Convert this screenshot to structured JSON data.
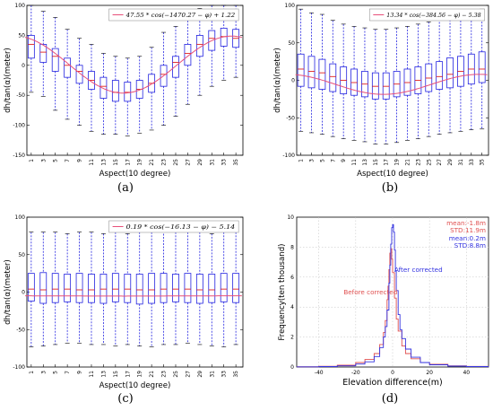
{
  "colors": {
    "box": "#2323e0",
    "median": "#e02020",
    "fit": "#e8507a",
    "before": "#e05050",
    "after": "#3232e0",
    "grid": "#bfbfbf"
  },
  "chart_data": [
    {
      "id": "a",
      "type": "box",
      "panel_label": "(a)",
      "xlabel": "Aspect(10 degree)",
      "ylabel": "dh/tan(α)(meter)",
      "ylim": [
        -150,
        100
      ],
      "yticks": [
        -150,
        -100,
        -50,
        0,
        50,
        100
      ],
      "xticks": [
        1,
        3,
        5,
        7,
        9,
        11,
        13,
        15,
        17,
        19,
        21,
        23,
        25,
        27,
        29,
        31,
        33,
        35
      ],
      "legend": "47.55 * cos(−1470.27 − φ) + 1.22",
      "fit": {
        "amplitude": 47.55,
        "phase_center": 16.3,
        "offset": 1.22
      },
      "boxes": [
        {
          "x": 1,
          "whislo": -45,
          "q1": 12,
          "med": 35,
          "q3": 50,
          "whishi": 100
        },
        {
          "x": 3,
          "whislo": -52,
          "q1": 5,
          "med": 22,
          "q3": 35,
          "whishi": 90
        },
        {
          "x": 5,
          "whislo": -75,
          "q1": -10,
          "med": 15,
          "q3": 28,
          "whishi": 80
        },
        {
          "x": 7,
          "whislo": -90,
          "q1": -20,
          "med": 0,
          "q3": 12,
          "whishi": 60
        },
        {
          "x": 9,
          "whislo": -100,
          "q1": -30,
          "med": -10,
          "q3": 0,
          "whishi": 45
        },
        {
          "x": 11,
          "whislo": -110,
          "q1": -40,
          "med": -25,
          "q3": -10,
          "whishi": 35
        },
        {
          "x": 13,
          "whislo": -115,
          "q1": -55,
          "med": -35,
          "q3": -20,
          "whishi": 20
        },
        {
          "x": 15,
          "whislo": -115,
          "q1": -60,
          "med": -45,
          "q3": -25,
          "whishi": 15
        },
        {
          "x": 17,
          "whislo": -118,
          "q1": -60,
          "med": -45,
          "q3": -28,
          "whishi": 12
        },
        {
          "x": 19,
          "whislo": -113,
          "q1": -55,
          "med": -40,
          "q3": -25,
          "whishi": 15
        },
        {
          "x": 21,
          "whislo": -108,
          "q1": -45,
          "med": -30,
          "q3": -15,
          "whishi": 30
        },
        {
          "x": 23,
          "whislo": -100,
          "q1": -35,
          "med": -15,
          "q3": 0,
          "whishi": 55
        },
        {
          "x": 25,
          "whislo": -85,
          "q1": -20,
          "med": 5,
          "q3": 15,
          "whishi": 65
        },
        {
          "x": 27,
          "whislo": -65,
          "q1": 0,
          "med": 20,
          "q3": 35,
          "whishi": 85
        },
        {
          "x": 29,
          "whislo": -50,
          "q1": 15,
          "med": 35,
          "q3": 50,
          "whishi": 95
        },
        {
          "x": 31,
          "whislo": -35,
          "q1": 25,
          "med": 45,
          "q3": 58,
          "whishi": 100
        },
        {
          "x": 33,
          "whislo": -25,
          "q1": 32,
          "med": 48,
          "q3": 62,
          "whishi": 100
        },
        {
          "x": 35,
          "whislo": -20,
          "q1": 30,
          "med": 45,
          "q3": 60,
          "whishi": 100
        }
      ]
    },
    {
      "id": "b",
      "type": "box",
      "panel_label": "(b)",
      "xlabel": "Aspect(10 degree)",
      "ylabel": "dh/tan(α)(meter)",
      "ylim": [
        -100,
        100
      ],
      "yticks": [
        -100,
        -50,
        0,
        50,
        100
      ],
      "xticks": [
        1,
        3,
        5,
        7,
        9,
        11,
        13,
        15,
        17,
        19,
        21,
        23,
        25,
        27,
        29,
        31,
        33,
        35
      ],
      "legend": "13.34 * cos(−384.56 − φ) − 5.38",
      "fit": {
        "amplitude": 13.34,
        "phase_center": 16.5,
        "offset": -5.38
      },
      "boxes": [
        {
          "x": 1,
          "whislo": -68,
          "q1": -8,
          "med": 15,
          "q3": 35,
          "whishi": 95
        },
        {
          "x": 3,
          "whislo": -70,
          "q1": -10,
          "med": 12,
          "q3": 32,
          "whishi": 90
        },
        {
          "x": 5,
          "whislo": -72,
          "q1": -12,
          "med": 10,
          "q3": 28,
          "whishi": 88
        },
        {
          "x": 7,
          "whislo": -75,
          "q1": -15,
          "med": 5,
          "q3": 22,
          "whishi": 80
        },
        {
          "x": 9,
          "whislo": -78,
          "q1": -18,
          "med": 0,
          "q3": 18,
          "whishi": 75
        },
        {
          "x": 11,
          "whislo": -80,
          "q1": -20,
          "med": -3,
          "q3": 15,
          "whishi": 72
        },
        {
          "x": 13,
          "whislo": -82,
          "q1": -22,
          "med": -5,
          "q3": 12,
          "whishi": 70
        },
        {
          "x": 15,
          "whislo": -85,
          "q1": -25,
          "med": -8,
          "q3": 10,
          "whishi": 68
        },
        {
          "x": 17,
          "whislo": -85,
          "q1": -25,
          "med": -8,
          "q3": 10,
          "whishi": 68
        },
        {
          "x": 19,
          "whislo": -83,
          "q1": -22,
          "med": -5,
          "q3": 12,
          "whishi": 70
        },
        {
          "x": 21,
          "whislo": -80,
          "q1": -20,
          "med": -3,
          "q3": 15,
          "whishi": 72
        },
        {
          "x": 23,
          "whislo": -78,
          "q1": -18,
          "med": 0,
          "q3": 18,
          "whishi": 75
        },
        {
          "x": 25,
          "whislo": -75,
          "q1": -15,
          "med": 3,
          "q3": 22,
          "whishi": 78
        },
        {
          "x": 27,
          "whislo": -72,
          "q1": -12,
          "med": 5,
          "q3": 25,
          "whishi": 82
        },
        {
          "x": 29,
          "whislo": -70,
          "q1": -10,
          "med": 8,
          "q3": 30,
          "whishi": 85
        },
        {
          "x": 31,
          "whislo": -68,
          "q1": -8,
          "med": 12,
          "q3": 32,
          "whishi": 88
        },
        {
          "x": 33,
          "whislo": -66,
          "q1": -5,
          "med": 15,
          "q3": 35,
          "whishi": 92
        },
        {
          "x": 35,
          "whislo": -65,
          "q1": -3,
          "med": 15,
          "q3": 38,
          "whishi": 95
        }
      ]
    },
    {
      "id": "c",
      "type": "box",
      "panel_label": "(c)",
      "xlabel": "Aspect(10 degree)",
      "ylabel": "dh/tan(α)(meter)",
      "ylim": [
        -100,
        100
      ],
      "yticks": [
        -100,
        -50,
        0,
        50,
        100
      ],
      "xticks": [
        1,
        3,
        5,
        7,
        9,
        11,
        13,
        15,
        17,
        19,
        21,
        23,
        25,
        27,
        29,
        31,
        33,
        35
      ],
      "legend": "0.19 * cos(−16.13 − φ) − 5.14",
      "fit": {
        "amplitude": 0.19,
        "phase_center": 16.5,
        "offset": -5.14
      },
      "boxes": [
        {
          "x": 1,
          "whislo": -73,
          "q1": -12,
          "med": 4,
          "q3": 25,
          "whishi": 80
        },
        {
          "x": 3,
          "whislo": -72,
          "q1": -15,
          "med": 3,
          "q3": 26,
          "whishi": 80
        },
        {
          "x": 5,
          "whislo": -70,
          "q1": -14,
          "med": 4,
          "q3": 25,
          "whishi": 80
        },
        {
          "x": 7,
          "whislo": -68,
          "q1": -13,
          "med": 4,
          "q3": 24,
          "whishi": 78
        },
        {
          "x": 9,
          "whislo": -68,
          "q1": -14,
          "med": 3,
          "q3": 25,
          "whishi": 80
        },
        {
          "x": 11,
          "whislo": -70,
          "q1": -14,
          "med": 3,
          "q3": 24,
          "whishi": 80
        },
        {
          "x": 13,
          "whislo": -70,
          "q1": -15,
          "med": 4,
          "q3": 24,
          "whishi": 78
        },
        {
          "x": 15,
          "whislo": -72,
          "q1": -13,
          "med": 4,
          "q3": 25,
          "whishi": 80
        },
        {
          "x": 17,
          "whislo": -70,
          "q1": -14,
          "med": 4,
          "q3": 24,
          "whishi": 78
        },
        {
          "x": 19,
          "whislo": -72,
          "q1": -16,
          "med": 3,
          "q3": 24,
          "whishi": 80
        },
        {
          "x": 21,
          "whislo": -73,
          "q1": -15,
          "med": 3,
          "q3": 25,
          "whishi": 80
        },
        {
          "x": 23,
          "whislo": -70,
          "q1": -14,
          "med": 4,
          "q3": 25,
          "whishi": 82
        },
        {
          "x": 25,
          "whislo": -70,
          "q1": -13,
          "med": 4,
          "q3": 24,
          "whishi": 80
        },
        {
          "x": 27,
          "whislo": -68,
          "q1": -14,
          "med": 4,
          "q3": 25,
          "whishi": 80
        },
        {
          "x": 29,
          "whislo": -70,
          "q1": -15,
          "med": 3,
          "q3": 24,
          "whishi": 80
        },
        {
          "x": 31,
          "whislo": -72,
          "q1": -14,
          "med": 3,
          "q3": 24,
          "whishi": 78
        },
        {
          "x": 33,
          "whislo": -73,
          "q1": -13,
          "med": 4,
          "q3": 25,
          "whishi": 80
        },
        {
          "x": 35,
          "whislo": -70,
          "q1": -14,
          "med": 4,
          "q3": 25,
          "whishi": 80
        }
      ]
    },
    {
      "id": "d",
      "type": "line",
      "panel_label": "(d)",
      "xlabel": "Elevation difference(m)",
      "ylabel": "Frequency(ten thousand)",
      "xlim": [
        -52,
        52
      ],
      "ylim": [
        0,
        10
      ],
      "xticks": [
        -40,
        -20,
        0,
        20,
        40
      ],
      "yticks": [
        0,
        2,
        4,
        6,
        8,
        10
      ],
      "grid": true,
      "annotations": {
        "before_mean": "mean:-1.8m",
        "before_std": "STD:11.9m",
        "after_mean": "mean:0.2m",
        "after_std": "STD:8.8m",
        "before_label": "Before corrected",
        "after_label": "After corrected"
      },
      "series": [
        {
          "name": "Before corrected",
          "x": [
            -52,
            -40,
            -30,
            -20,
            -15,
            -10,
            -7,
            -5,
            -4,
            -3,
            -2.5,
            -2,
            -1.5,
            -1,
            -0.5,
            0,
            1,
            2,
            3,
            5,
            7,
            10,
            15,
            20,
            30,
            40,
            52
          ],
          "y": [
            0.02,
            0.05,
            0.12,
            0.3,
            0.5,
            0.9,
            1.5,
            2.3,
            3.1,
            4.5,
            5.4,
            6.5,
            7.6,
            7.9,
            7.2,
            6.3,
            4.6,
            3.2,
            2.4,
            1.4,
            0.9,
            0.55,
            0.3,
            0.18,
            0.08,
            0.04,
            0.02
          ]
        },
        {
          "name": "After corrected",
          "x": [
            -52,
            -40,
            -30,
            -20,
            -15,
            -10,
            -7,
            -5,
            -4,
            -3,
            -2,
            -1.5,
            -1,
            -0.5,
            0,
            0.5,
            1,
            1.5,
            2,
            3,
            4,
            5,
            7,
            10,
            15,
            20,
            30,
            40,
            52
          ],
          "y": [
            0.01,
            0.03,
            0.08,
            0.2,
            0.35,
            0.7,
            1.3,
            2.0,
            2.7,
            3.8,
            5.6,
            6.8,
            8.2,
            9.3,
            9.5,
            9.0,
            7.8,
            6.4,
            5.1,
            3.5,
            2.5,
            1.9,
            1.2,
            0.65,
            0.3,
            0.15,
            0.06,
            0.03,
            0.01
          ]
        }
      ]
    }
  ]
}
